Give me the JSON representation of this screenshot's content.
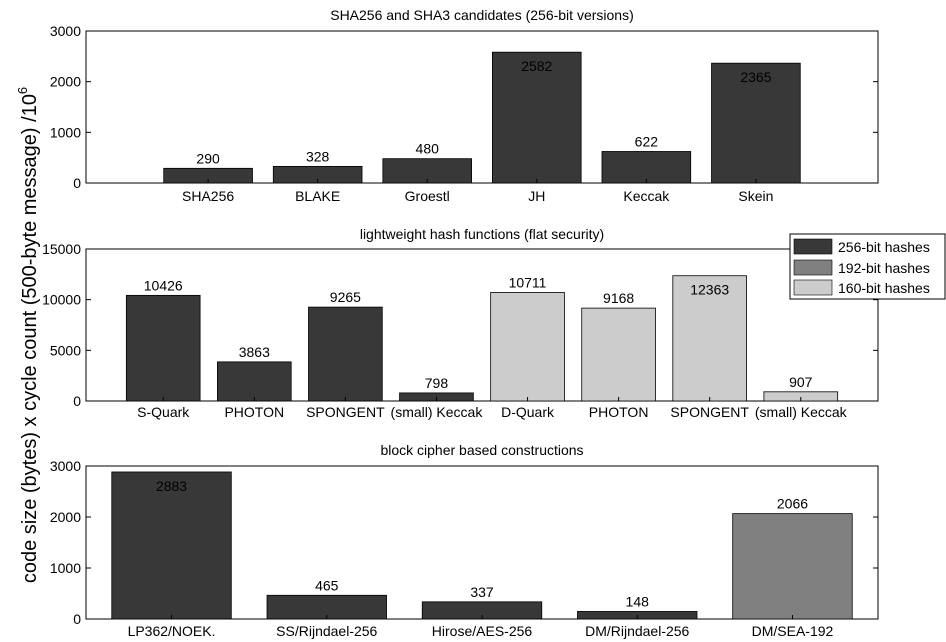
{
  "ylabel": "code size (bytes) x cycle count (500-byte message) /10",
  "ylabel_sup": "6",
  "legend": [
    {
      "label": "256-bit hashes",
      "color": "#383838"
    },
    {
      "label": "192-bit hashes",
      "color": "#808080"
    },
    {
      "label": "160-bit hashes",
      "color": "#cccccc"
    }
  ],
  "chart_data": [
    {
      "type": "bar",
      "title": "SHA256 and SHA3 candidates (256-bit versions)",
      "categories": [
        "SHA256",
        "BLAKE",
        "Groestl",
        "JH",
        "Keccak",
        "Skein"
      ],
      "values": [
        290,
        328,
        480,
        2582,
        622,
        2365
      ],
      "groups": [
        "256-bit hashes",
        "256-bit hashes",
        "256-bit hashes",
        "256-bit hashes",
        "256-bit hashes",
        "256-bit hashes"
      ],
      "ylim": [
        0,
        3000
      ],
      "yticks": [
        0,
        1000,
        2000,
        3000
      ],
      "grid": false
    },
    {
      "type": "bar",
      "title": "lightweight hash functions (flat security)",
      "categories": [
        "S-Quark",
        "PHOTON",
        "SPONGENT",
        "(small) Keccak",
        "D-Quark",
        "PHOTON",
        "SPONGENT",
        "(small) Keccak"
      ],
      "values": [
        10426,
        3863,
        9265,
        798,
        10711,
        9168,
        12363,
        907
      ],
      "groups": [
        "256-bit hashes",
        "256-bit hashes",
        "256-bit hashes",
        "256-bit hashes",
        "160-bit hashes",
        "160-bit hashes",
        "160-bit hashes",
        "160-bit hashes"
      ],
      "ylim": [
        0,
        15000
      ],
      "yticks": [
        0,
        5000,
        10000,
        15000
      ],
      "grid": false,
      "legend_position": "top-right"
    },
    {
      "type": "bar",
      "title": "block cipher based constructions",
      "categories": [
        "LP362/NOEK.",
        "SS/Rijndael-256",
        "Hirose/AES-256",
        "DM/Rijndael-256",
        "DM/SEA-192"
      ],
      "values": [
        2883,
        465,
        337,
        148,
        2066
      ],
      "groups": [
        "256-bit hashes",
        "256-bit hashes",
        "256-bit hashes",
        "256-bit hashes",
        "192-bit hashes"
      ],
      "ylim": [
        0,
        3000
      ],
      "yticks": [
        0,
        1000,
        2000,
        3000
      ],
      "grid": false
    }
  ]
}
